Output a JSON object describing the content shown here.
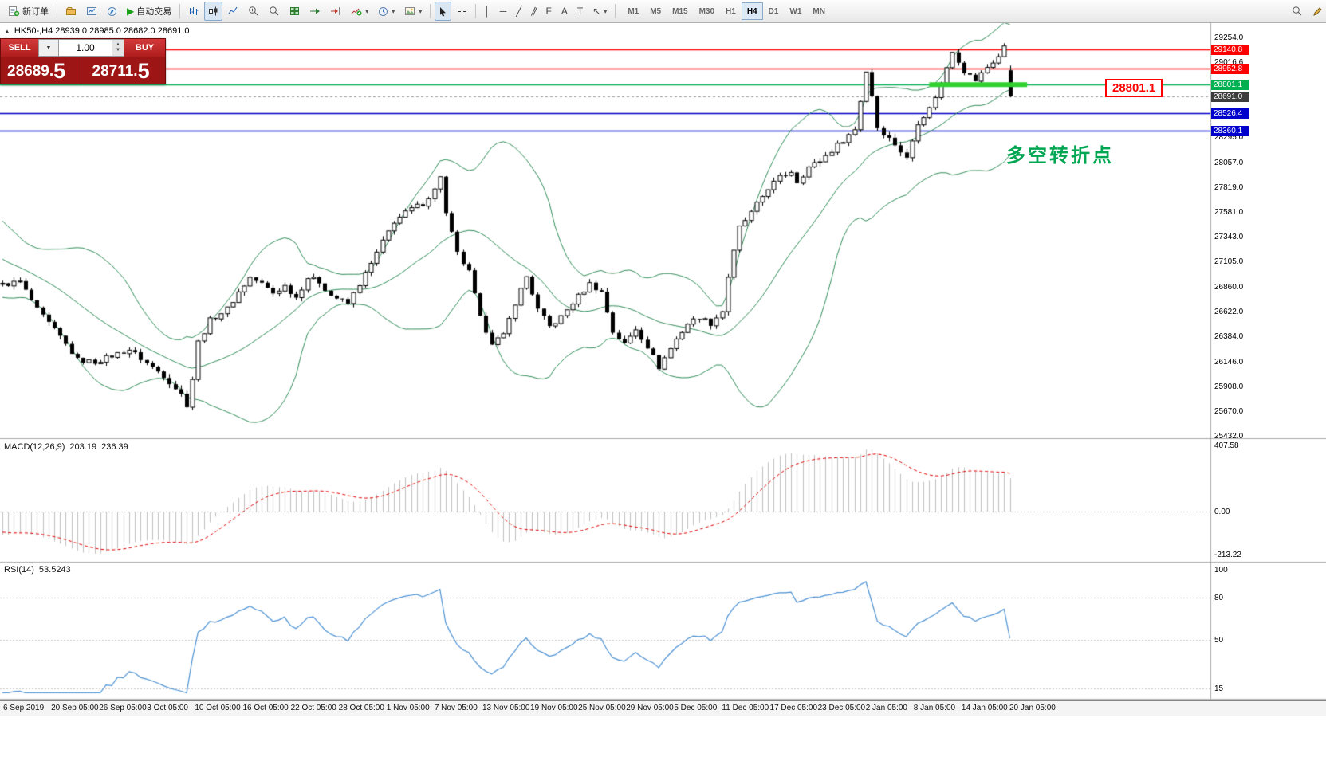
{
  "toolbar": {
    "new_order_label": "新订单",
    "auto_trading_label": "自动交易",
    "timeframes": [
      "M1",
      "M5",
      "M15",
      "M30",
      "H1",
      "H4",
      "D1",
      "W1",
      "MN"
    ],
    "active_timeframe": "H4"
  },
  "icons": {
    "play": "▶",
    "caret_down": "▾",
    "caret_down_big": "▼",
    "collapse_up": "▲",
    "spinner_up": "▲",
    "spinner_down": "▼",
    "vertical_line": "│",
    "horizontal_line": "─",
    "trendline": "╱",
    "channel": "∥",
    "fibonacci": "F",
    "text": "A",
    "label": "T",
    "arrows": "↖"
  },
  "chart": {
    "symbol_info": "HK50-,H4 28939.0 28985.0 28682.0 28691.0"
  },
  "trade_panel": {
    "sell_label": "SELL",
    "buy_label": "BUY",
    "volume": "1.00",
    "sell_price_main": "28689.",
    "sell_price_frac": "5",
    "buy_price_main": "28711.",
    "buy_price_frac": "5"
  },
  "chart_data": {
    "type": "candlestick",
    "symbol": "HK50-",
    "timeframe": "H4",
    "title": "HK50-,H4",
    "current_candle": {
      "open": 28939.0,
      "high": 28985.0,
      "low": 28682.0,
      "close": 28691.0
    },
    "bid": 28689.5,
    "ask": 28711.5,
    "y_axis": {
      "max": 29254.0,
      "min": 25432.0,
      "ticks": [
        "29254.0",
        "29016.6",
        "28295.0",
        "28057.0",
        "27819.0",
        "27581.0",
        "27343.0",
        "27105.0",
        "26860.0",
        "26622.0",
        "26384.0",
        "26146.0",
        "25908.0",
        "25670.0",
        "25432.0"
      ]
    },
    "levels": [
      {
        "price": 29140.8,
        "label": "29140.8",
        "color": "#ff0000",
        "role": "resistance-1"
      },
      {
        "price": 28952.8,
        "label": "28952.8",
        "color": "#ff0000",
        "role": "resistance-2"
      },
      {
        "price": 28801.1,
        "label": "28801.1",
        "color": "#00b050",
        "role": "pivot"
      },
      {
        "price": 28691.0,
        "label": "28691.0",
        "color": "#3c3c3c",
        "role": "last-price"
      },
      {
        "price": 28526.4,
        "label": "28526.4",
        "color": "#0000cc",
        "role": "support-1"
      },
      {
        "price": 28360.1,
        "label": "28360.1",
        "color": "#0000cc",
        "role": "support-2"
      }
    ],
    "pivot_segment": {
      "price": 28801.1,
      "from_index": 161,
      "to_index": 178,
      "color": "#2ed130"
    },
    "annotation": {
      "text": "多空转折点",
      "color": "#00a651"
    },
    "callout": {
      "text": "28801.1",
      "color": "#ff0000"
    },
    "candles": {
      "count": 176,
      "wiggle": 50,
      "wick": 38,
      "price_anchors": [
        [
          -20,
          27520
        ],
        [
          -14,
          27260
        ],
        [
          -8,
          27040
        ],
        [
          -3,
          26930
        ],
        [
          0,
          26880
        ],
        [
          3,
          26910
        ],
        [
          6,
          26640
        ],
        [
          10,
          26380
        ],
        [
          13,
          26160
        ],
        [
          16,
          26140
        ],
        [
          19,
          26200
        ],
        [
          22,
          26260
        ],
        [
          25,
          26130
        ],
        [
          28,
          26010
        ],
        [
          31,
          25830
        ],
        [
          32,
          25730
        ],
        [
          33,
          25980
        ],
        [
          34,
          26330
        ],
        [
          36,
          26540
        ],
        [
          39,
          26650
        ],
        [
          41,
          26810
        ],
        [
          43,
          26950
        ],
        [
          45,
          26890
        ],
        [
          47,
          26800
        ],
        [
          49,
          26870
        ],
        [
          51,
          26760
        ],
        [
          53,
          26950
        ],
        [
          55,
          26910
        ],
        [
          57,
          26780
        ],
        [
          60,
          26700
        ],
        [
          62,
          26890
        ],
        [
          64,
          27080
        ],
        [
          66,
          27290
        ],
        [
          68,
          27490
        ],
        [
          71,
          27610
        ],
        [
          73,
          27660
        ],
        [
          75,
          27790
        ],
        [
          76,
          27930
        ],
        [
          77,
          27560
        ],
        [
          79,
          27180
        ],
        [
          81,
          27000
        ],
        [
          83,
          26560
        ],
        [
          85,
          26330
        ],
        [
          87,
          26390
        ],
        [
          89,
          26710
        ],
        [
          91,
          26960
        ],
        [
          93,
          26640
        ],
        [
          95,
          26480
        ],
        [
          97,
          26570
        ],
        [
          99,
          26710
        ],
        [
          102,
          26890
        ],
        [
          104,
          26810
        ],
        [
          106,
          26430
        ],
        [
          108,
          26310
        ],
        [
          110,
          26460
        ],
        [
          112,
          26290
        ],
        [
          114,
          26090
        ],
        [
          117,
          26360
        ],
        [
          119,
          26510
        ],
        [
          121,
          26570
        ],
        [
          123,
          26510
        ],
        [
          125,
          26630
        ],
        [
          126,
          26960
        ],
        [
          128,
          27430
        ],
        [
          130,
          27570
        ],
        [
          133,
          27810
        ],
        [
          135,
          27910
        ],
        [
          137,
          27970
        ],
        [
          138,
          27870
        ],
        [
          140,
          28010
        ],
        [
          142,
          28070
        ],
        [
          144,
          28170
        ],
        [
          146,
          28270
        ],
        [
          148,
          28370
        ],
        [
          150,
          28930
        ],
        [
          151,
          28700
        ],
        [
          152,
          28390
        ],
        [
          155,
          28230
        ],
        [
          157,
          28090
        ],
        [
          159,
          28440
        ],
        [
          161,
          28570
        ],
        [
          163,
          28810
        ],
        [
          165,
          29130
        ],
        [
          167,
          28930
        ],
        [
          169,
          28840
        ],
        [
          171,
          28970
        ],
        [
          173,
          29070
        ],
        [
          174,
          29160
        ],
        [
          175,
          28940
        ]
      ]
    },
    "indicators": {
      "bollinger": {
        "period": 20,
        "deviation": 2,
        "color": "#2e8b57"
      },
      "macd": {
        "label": "MACD(12,26,9)",
        "fast": 12,
        "slow": 26,
        "signal": 9,
        "value_main": "203.19",
        "value_signal": "236.39",
        "scale": [
          "407.58",
          "0.00",
          "-213.22"
        ],
        "histogram_color": "#bfbfbf",
        "signal_color": "#e00000"
      },
      "rsi": {
        "label": "RSI(14)",
        "value": "53.5243",
        "period": 14,
        "scale": [
          "100",
          "80",
          "50",
          "15"
        ],
        "levels": [
          80,
          50,
          15
        ],
        "color": "#4a90d2"
      }
    },
    "x_labels": [
      "6 Sep 2019",
      "20 Sep 05:00",
      "26 Sep 05:00",
      "3 Oct 05:00",
      "10 Oct 05:00",
      "16 Oct 05:00",
      "22 Oct 05:00",
      "28 Oct 05:00",
      "1 Nov 05:00",
      "7 Nov 05:00",
      "13 Nov 05:00",
      "19 Nov 05:00",
      "25 Nov 05:00",
      "29 Nov 05:00",
      "5 Dec 05:00",
      "11 Dec 05:00",
      "17 Dec 05:00",
      "23 Dec 05:00",
      "2 Jan 05:00",
      "8 Jan 05:00",
      "14 Jan 05:00",
      "20 Jan 05:00"
    ]
  }
}
